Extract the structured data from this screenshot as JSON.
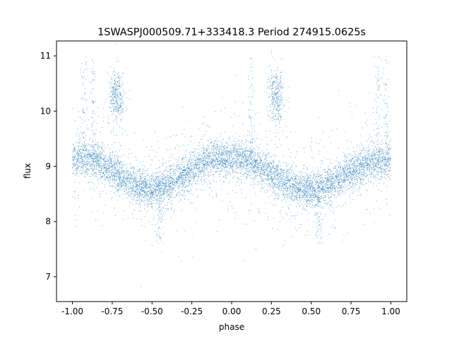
{
  "chart_data": {
    "type": "scatter",
    "title": "1SWASPJ000509.71+333418.3 Period 274915.0625s",
    "xlabel": "phase",
    "ylabel": "flux",
    "xlim": [
      -1.1,
      1.1
    ],
    "ylim": [
      6.55,
      11.27
    ],
    "xticks": [
      "-1.00",
      "-0.75",
      "-0.50",
      "-0.25",
      "0.00",
      "0.25",
      "0.50",
      "0.75",
      "1.00"
    ],
    "yticks": [
      "7",
      "8",
      "9",
      "10",
      "11"
    ],
    "grid": false,
    "legend": "none",
    "point_color": "#1f77b4",
    "series": [
      {
        "x": [
          -1.0,
          -0.95,
          -0.9,
          -0.85,
          -0.8,
          -0.75,
          -0.7,
          -0.65,
          -0.6,
          -0.55,
          -0.5,
          -0.45,
          -0.4,
          -0.35,
          -0.3,
          -0.25,
          -0.2,
          -0.15,
          -0.1,
          -0.05,
          0.0,
          0.05,
          0.1,
          0.15,
          0.2,
          0.25,
          0.3,
          0.35,
          0.4,
          0.45,
          0.5,
          0.55,
          0.6,
          0.65,
          0.7,
          0.75,
          0.8,
          0.85,
          0.9,
          0.95,
          1.0
        ],
        "y": [
          9.12,
          9.15,
          9.13,
          9.08,
          9.02,
          8.93,
          8.83,
          8.73,
          8.65,
          8.6,
          8.58,
          8.6,
          8.66,
          8.75,
          8.85,
          8.95,
          9.04,
          9.1,
          9.14,
          9.15,
          9.14,
          9.13,
          9.1,
          9.04,
          8.96,
          8.86,
          8.76,
          8.68,
          8.62,
          8.58,
          8.57,
          8.58,
          8.63,
          8.71,
          8.8,
          8.9,
          8.98,
          9.04,
          9.08,
          9.1,
          9.12
        ]
      }
    ]
  }
}
